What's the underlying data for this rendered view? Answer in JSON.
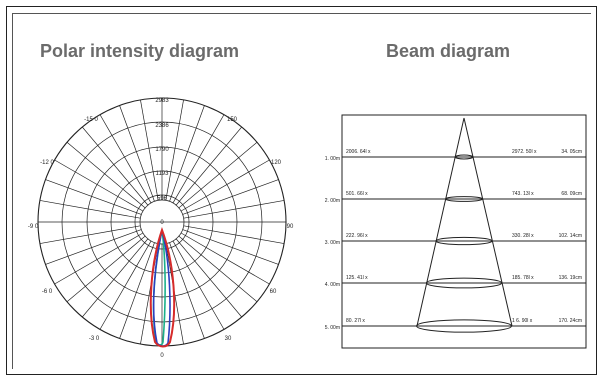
{
  "headings": {
    "polar": "Polar intensity diagram",
    "beam": "Beam diagram"
  },
  "polar": {
    "ring_labels": [
      "2983",
      "2386",
      "1790",
      "1193",
      "596",
      "0"
    ],
    "angle_labels": {
      "neg150": "-15 0",
      "pos150": "150",
      "neg120": "-12 0",
      "pos120": "120",
      "neg90": "-9 0",
      "pos90": "90",
      "neg60": "-6 0",
      "pos60": "60",
      "neg30": "-3 0",
      "pos30": "30",
      "zero": "0"
    },
    "curve_colors": {
      "main": "#d62b2b",
      "secondary": "#2a3fbf",
      "tertiary": "#1bb08a"
    }
  },
  "beam": {
    "rows": [
      {
        "distance": "1. 00m",
        "center_lux": "2006. 64l x",
        "edge_lux": "2972. 50l x",
        "diameter": "34. 05cm"
      },
      {
        "distance": "2. 00m",
        "center_lux": "501. 66l x",
        "edge_lux": "743. 13l x",
        "diameter": "68. 09cm"
      },
      {
        "distance": "3. 00m",
        "center_lux": "222. 96l x",
        "edge_lux": "330. 28l x",
        "diameter": "102. 14cm"
      },
      {
        "distance": "4. 00m",
        "center_lux": "125. 41l x",
        "edge_lux": "185. 78l x",
        "diameter": "136. 19cm"
      },
      {
        "distance": "5. 00m",
        "center_lux": "80. 27l x",
        "edge_lux": "1 6. 90l x",
        "diameter": "170. 24cm"
      }
    ]
  }
}
